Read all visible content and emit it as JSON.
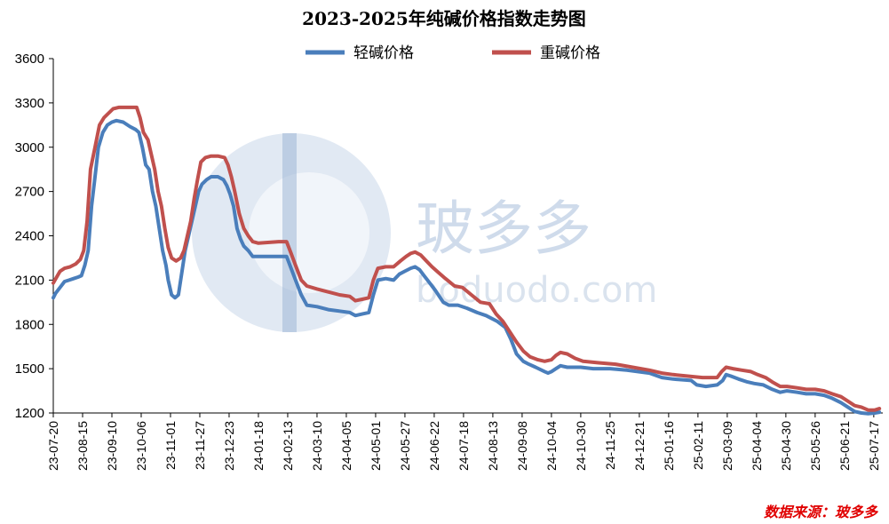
{
  "chart_data": {
    "type": "line",
    "title": "2023-2025年纯碱价格指数走势图",
    "ylim": [
      1200,
      3600
    ],
    "yticks": [
      1200,
      1500,
      1800,
      2100,
      2400,
      2700,
      3000,
      3300,
      3600
    ],
    "xlim": [
      "2023-07-20",
      "2025-07-25"
    ],
    "xtick_labels": [
      "23-07-20",
      "23-08-15",
      "23-09-10",
      "23-10-06",
      "23-11-01",
      "23-11-27",
      "23-12-23",
      "24-01-18",
      "24-02-13",
      "24-03-10",
      "24-04-05",
      "24-05-01",
      "24-05-27",
      "24-06-22",
      "24-07-18",
      "24-08-13",
      "24-09-08",
      "24-10-04",
      "24-10-30",
      "24-11-25",
      "24-12-21",
      "25-01-16",
      "25-02-11",
      "25-03-09",
      "25-04-04",
      "25-04-30",
      "25-05-26",
      "25-06-21",
      "25-07-17"
    ],
    "legend_position": "top-center",
    "grid": false,
    "series": [
      {
        "name": "轻碱价格",
        "color": "#4a7ebb",
        "points": [
          [
            "2023-07-20",
            1980
          ],
          [
            "2023-07-22",
            2010
          ],
          [
            "2023-07-26",
            2050
          ],
          [
            "2023-07-30",
            2090
          ],
          [
            "2023-08-03",
            2100
          ],
          [
            "2023-08-07",
            2110
          ],
          [
            "2023-08-11",
            2120
          ],
          [
            "2023-08-14",
            2130
          ],
          [
            "2023-08-17",
            2200
          ],
          [
            "2023-08-20",
            2300
          ],
          [
            "2023-08-23",
            2600
          ],
          [
            "2023-08-26",
            2800
          ],
          [
            "2023-08-29",
            3000
          ],
          [
            "2023-09-02",
            3100
          ],
          [
            "2023-09-06",
            3150
          ],
          [
            "2023-09-10",
            3170
          ],
          [
            "2023-09-14",
            3180
          ],
          [
            "2023-09-20",
            3170
          ],
          [
            "2023-09-26",
            3140
          ],
          [
            "2023-10-01",
            3120
          ],
          [
            "2023-10-04",
            3100
          ],
          [
            "2023-10-07",
            3000
          ],
          [
            "2023-10-10",
            2880
          ],
          [
            "2023-10-13",
            2850
          ],
          [
            "2023-10-16",
            2700
          ],
          [
            "2023-10-19",
            2600
          ],
          [
            "2023-10-22",
            2450
          ],
          [
            "2023-10-25",
            2300
          ],
          [
            "2023-10-28",
            2200
          ],
          [
            "2023-10-30",
            2100
          ],
          [
            "2023-11-02",
            2000
          ],
          [
            "2023-11-05",
            1980
          ],
          [
            "2023-11-08",
            2000
          ],
          [
            "2023-11-11",
            2150
          ],
          [
            "2023-11-14",
            2300
          ],
          [
            "2023-11-17",
            2400
          ],
          [
            "2023-11-20",
            2500
          ],
          [
            "2023-11-23",
            2600
          ],
          [
            "2023-11-26",
            2700
          ],
          [
            "2023-11-29",
            2750
          ],
          [
            "2023-12-03",
            2780
          ],
          [
            "2023-12-07",
            2800
          ],
          [
            "2023-12-13",
            2800
          ],
          [
            "2023-12-18",
            2780
          ],
          [
            "2023-12-21",
            2740
          ],
          [
            "2023-12-24",
            2680
          ],
          [
            "2023-12-27",
            2600
          ],
          [
            "2023-12-30",
            2450
          ],
          [
            "2024-01-02",
            2380
          ],
          [
            "2024-01-05",
            2330
          ],
          [
            "2024-01-09",
            2300
          ],
          [
            "2024-01-13",
            2260
          ],
          [
            "2024-01-20",
            2260
          ],
          [
            "2024-02-05",
            2260
          ],
          [
            "2024-02-12",
            2260
          ],
          [
            "2024-02-15",
            2200
          ],
          [
            "2024-02-20",
            2100
          ],
          [
            "2024-02-25",
            2000
          ],
          [
            "2024-03-01",
            1930
          ],
          [
            "2024-03-10",
            1920
          ],
          [
            "2024-03-20",
            1900
          ],
          [
            "2024-03-30",
            1890
          ],
          [
            "2024-04-08",
            1880
          ],
          [
            "2024-04-13",
            1860
          ],
          [
            "2024-04-19",
            1870
          ],
          [
            "2024-04-25",
            1880
          ],
          [
            "2024-04-29",
            2000
          ],
          [
            "2024-05-03",
            2100
          ],
          [
            "2024-05-10",
            2110
          ],
          [
            "2024-05-17",
            2100
          ],
          [
            "2024-05-22",
            2140
          ],
          [
            "2024-05-27",
            2160
          ],
          [
            "2024-06-01",
            2180
          ],
          [
            "2024-06-05",
            2190
          ],
          [
            "2024-06-09",
            2170
          ],
          [
            "2024-06-13",
            2130
          ],
          [
            "2024-06-18",
            2080
          ],
          [
            "2024-06-23",
            2030
          ],
          [
            "2024-06-30",
            1950
          ],
          [
            "2024-07-05",
            1930
          ],
          [
            "2024-07-13",
            1930
          ],
          [
            "2024-07-21",
            1910
          ],
          [
            "2024-07-30",
            1880
          ],
          [
            "2024-08-07",
            1860
          ],
          [
            "2024-08-17",
            1820
          ],
          [
            "2024-08-24",
            1780
          ],
          [
            "2024-08-29",
            1700
          ],
          [
            "2024-09-03",
            1600
          ],
          [
            "2024-09-09",
            1550
          ],
          [
            "2024-09-14",
            1530
          ],
          [
            "2024-09-20",
            1510
          ],
          [
            "2024-09-28",
            1480
          ],
          [
            "2024-10-01",
            1470
          ],
          [
            "2024-10-04",
            1480
          ],
          [
            "2024-10-08",
            1500
          ],
          [
            "2024-10-12",
            1520
          ],
          [
            "2024-10-18",
            1510
          ],
          [
            "2024-10-30",
            1510
          ],
          [
            "2024-11-10",
            1500
          ],
          [
            "2024-11-25",
            1500
          ],
          [
            "2024-12-10",
            1490
          ],
          [
            "2024-12-30",
            1470
          ],
          [
            "2025-01-10",
            1440
          ],
          [
            "2025-01-20",
            1430
          ],
          [
            "2025-02-05",
            1420
          ],
          [
            "2025-02-10",
            1390
          ],
          [
            "2025-02-18",
            1380
          ],
          [
            "2025-02-28",
            1390
          ],
          [
            "2025-03-05",
            1420
          ],
          [
            "2025-03-08",
            1460
          ],
          [
            "2025-03-12",
            1450
          ],
          [
            "2025-03-19",
            1430
          ],
          [
            "2025-03-27",
            1410
          ],
          [
            "2025-04-02",
            1400
          ],
          [
            "2025-04-10",
            1390
          ],
          [
            "2025-04-18",
            1360
          ],
          [
            "2025-04-25",
            1340
          ],
          [
            "2025-05-01",
            1350
          ],
          [
            "2025-05-10",
            1340
          ],
          [
            "2025-05-18",
            1330
          ],
          [
            "2025-05-26",
            1330
          ],
          [
            "2025-06-03",
            1320
          ],
          [
            "2025-06-10",
            1300
          ],
          [
            "2025-06-18",
            1270
          ],
          [
            "2025-06-24",
            1240
          ],
          [
            "2025-06-30",
            1210
          ],
          [
            "2025-07-06",
            1200
          ],
          [
            "2025-07-12",
            1195
          ],
          [
            "2025-07-18",
            1200
          ],
          [
            "2025-07-22",
            1205
          ]
        ]
      },
      {
        "name": "重碱价格",
        "color": "#c0504d",
        "points": [
          [
            "2023-07-20",
            2080
          ],
          [
            "2023-07-23",
            2120
          ],
          [
            "2023-07-26",
            2160
          ],
          [
            "2023-07-30",
            2180
          ],
          [
            "2023-08-04",
            2190
          ],
          [
            "2023-08-09",
            2210
          ],
          [
            "2023-08-13",
            2240
          ],
          [
            "2023-08-16",
            2300
          ],
          [
            "2023-08-19",
            2500
          ],
          [
            "2023-08-22",
            2850
          ],
          [
            "2023-08-26",
            3000
          ],
          [
            "2023-08-30",
            3150
          ],
          [
            "2023-09-03",
            3200
          ],
          [
            "2023-09-07",
            3230
          ],
          [
            "2023-09-11",
            3260
          ],
          [
            "2023-09-16",
            3270
          ],
          [
            "2023-09-26",
            3270
          ],
          [
            "2023-10-02",
            3270
          ],
          [
            "2023-10-05",
            3200
          ],
          [
            "2023-10-08",
            3100
          ],
          [
            "2023-10-12",
            3050
          ],
          [
            "2023-10-15",
            2950
          ],
          [
            "2023-10-18",
            2850
          ],
          [
            "2023-10-21",
            2700
          ],
          [
            "2023-10-24",
            2600
          ],
          [
            "2023-10-27",
            2450
          ],
          [
            "2023-10-30",
            2320
          ],
          [
            "2023-11-02",
            2250
          ],
          [
            "2023-11-06",
            2230
          ],
          [
            "2023-11-10",
            2250
          ],
          [
            "2023-11-13",
            2300
          ],
          [
            "2023-11-16",
            2400
          ],
          [
            "2023-11-19",
            2500
          ],
          [
            "2023-11-22",
            2650
          ],
          [
            "2023-11-25",
            2780
          ],
          [
            "2023-11-28",
            2900
          ],
          [
            "2023-12-02",
            2930
          ],
          [
            "2023-12-07",
            2940
          ],
          [
            "2023-12-13",
            2940
          ],
          [
            "2023-12-19",
            2930
          ],
          [
            "2023-12-22",
            2880
          ],
          [
            "2023-12-25",
            2800
          ],
          [
            "2023-12-28",
            2700
          ],
          [
            "2024-01-01",
            2550
          ],
          [
            "2024-01-05",
            2450
          ],
          [
            "2024-01-09",
            2400
          ],
          [
            "2024-01-13",
            2360
          ],
          [
            "2024-01-18",
            2350
          ],
          [
            "2024-02-05",
            2360
          ],
          [
            "2024-02-12",
            2360
          ],
          [
            "2024-02-16",
            2280
          ],
          [
            "2024-02-20",
            2200
          ],
          [
            "2024-02-25",
            2100
          ],
          [
            "2024-03-01",
            2060
          ],
          [
            "2024-03-10",
            2040
          ],
          [
            "2024-03-20",
            2020
          ],
          [
            "2024-03-30",
            2000
          ],
          [
            "2024-04-08",
            1990
          ],
          [
            "2024-04-13",
            1960
          ],
          [
            "2024-04-19",
            1970
          ],
          [
            "2024-04-25",
            1980
          ],
          [
            "2024-04-29",
            2100
          ],
          [
            "2024-05-03",
            2180
          ],
          [
            "2024-05-10",
            2190
          ],
          [
            "2024-05-17",
            2190
          ],
          [
            "2024-05-23",
            2230
          ],
          [
            "2024-05-28",
            2260
          ],
          [
            "2024-06-01",
            2280
          ],
          [
            "2024-06-05",
            2290
          ],
          [
            "2024-06-10",
            2270
          ],
          [
            "2024-06-15",
            2230
          ],
          [
            "2024-06-20",
            2190
          ],
          [
            "2024-06-26",
            2150
          ],
          [
            "2024-07-02",
            2110
          ],
          [
            "2024-07-10",
            2060
          ],
          [
            "2024-07-17",
            2050
          ],
          [
            "2024-07-25",
            2000
          ],
          [
            "2024-08-02",
            1950
          ],
          [
            "2024-08-10",
            1940
          ],
          [
            "2024-08-16",
            1870
          ],
          [
            "2024-08-22",
            1820
          ],
          [
            "2024-08-28",
            1750
          ],
          [
            "2024-09-03",
            1680
          ],
          [
            "2024-09-09",
            1620
          ],
          [
            "2024-09-15",
            1580
          ],
          [
            "2024-09-22",
            1560
          ],
          [
            "2024-09-28",
            1550
          ],
          [
            "2024-10-04",
            1560
          ],
          [
            "2024-10-08",
            1590
          ],
          [
            "2024-10-12",
            1610
          ],
          [
            "2024-10-18",
            1600
          ],
          [
            "2024-10-25",
            1570
          ],
          [
            "2024-11-01",
            1550
          ],
          [
            "2024-11-15",
            1540
          ],
          [
            "2024-11-30",
            1530
          ],
          [
            "2024-12-15",
            1510
          ],
          [
            "2024-12-30",
            1490
          ],
          [
            "2025-01-10",
            1470
          ],
          [
            "2025-01-20",
            1460
          ],
          [
            "2025-02-01",
            1450
          ],
          [
            "2025-02-15",
            1440
          ],
          [
            "2025-02-28",
            1440
          ],
          [
            "2025-03-04",
            1480
          ],
          [
            "2025-03-08",
            1510
          ],
          [
            "2025-03-14",
            1500
          ],
          [
            "2025-03-22",
            1490
          ],
          [
            "2025-03-30",
            1480
          ],
          [
            "2025-04-05",
            1460
          ],
          [
            "2025-04-12",
            1440
          ],
          [
            "2025-04-18",
            1410
          ],
          [
            "2025-04-25",
            1380
          ],
          [
            "2025-05-01",
            1380
          ],
          [
            "2025-05-10",
            1370
          ],
          [
            "2025-05-18",
            1360
          ],
          [
            "2025-05-26",
            1360
          ],
          [
            "2025-06-03",
            1350
          ],
          [
            "2025-06-10",
            1330
          ],
          [
            "2025-06-18",
            1310
          ],
          [
            "2025-06-24",
            1280
          ],
          [
            "2025-06-30",
            1250
          ],
          [
            "2025-07-06",
            1240
          ],
          [
            "2025-07-12",
            1220
          ],
          [
            "2025-07-18",
            1220
          ],
          [
            "2025-07-22",
            1230
          ]
        ]
      }
    ]
  },
  "watermark": {
    "text": "玻多多",
    "url": "boduodo.com"
  },
  "source_note": "数据来源：玻多多"
}
